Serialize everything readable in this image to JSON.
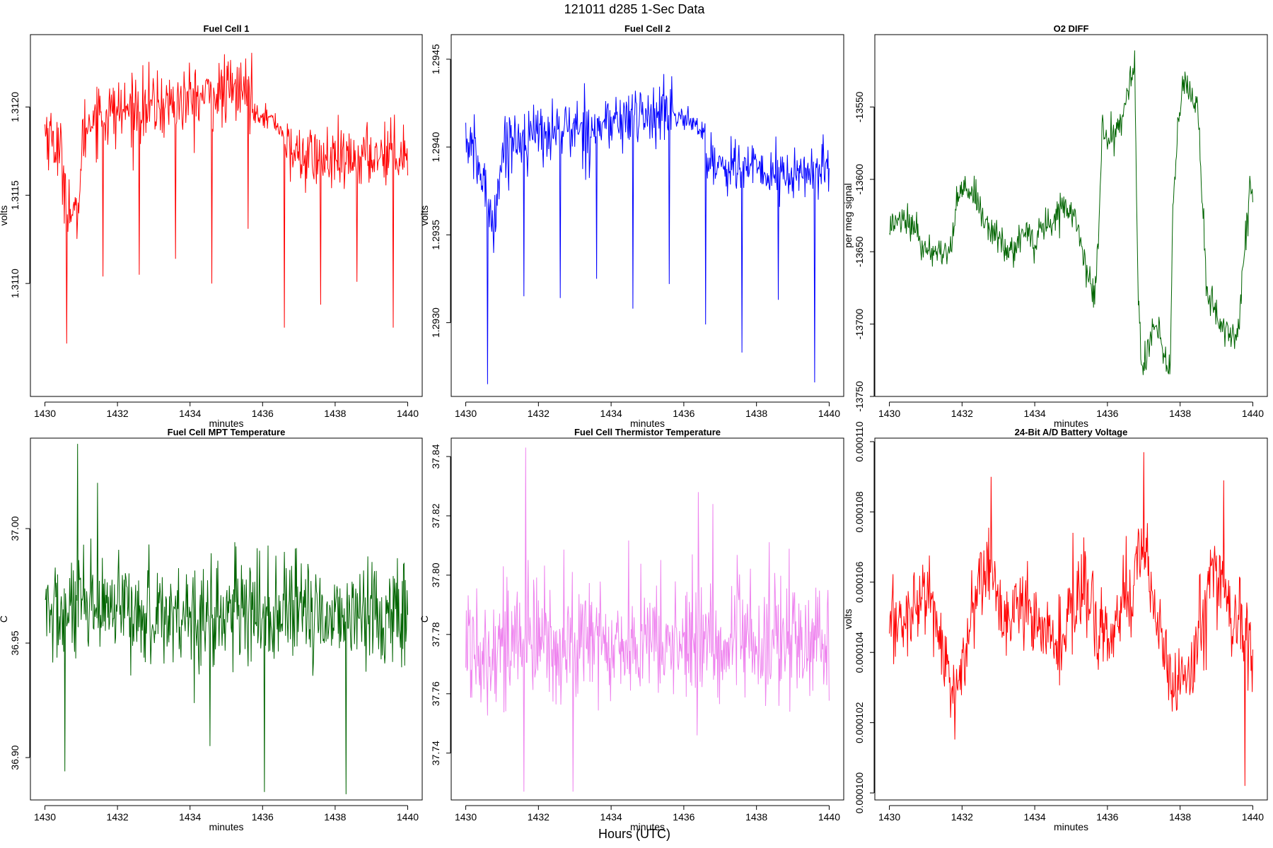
{
  "figure": {
    "title": "121011   d285   1-Sec Data",
    "bottom_label": "Hours (UTC)"
  },
  "chart_data": [
    {
      "type": "line",
      "title": "Fuel Cell 1",
      "xlabel": "minutes",
      "ylabel": "volts",
      "color": "#ff0000",
      "xlim": [
        1429.6,
        1440.4
      ],
      "ylim": [
        1.31036,
        1.31241
      ],
      "xticks": [
        1430,
        1432,
        1434,
        1436,
        1438,
        1440
      ],
      "xtick_labels": [
        "1430",
        "1432",
        "1434",
        "1436",
        "1438",
        "1440"
      ],
      "yticks": [
        1.311,
        1.3115,
        1.312
      ],
      "ytick_labels": [
        "1.3110",
        "1.3115",
        "1.3120"
      ],
      "series": [
        {
          "name": "Fuel Cell 1",
          "segments": [
            {
              "x0": 1430.0,
              "x1": 1431.5,
              "base": [
                1.31188,
                1.31182,
                1.31172,
                1.31145,
                1.31132,
                1.31185,
                1.31195,
                1.31198
              ],
              "noise": 0.00022
            },
            {
              "x0": 1431.5,
              "x1": 1435.7,
              "base": [
                1.31195,
                1.31198,
                1.312,
                1.31202,
                1.31205,
                1.31208,
                1.3121
              ],
              "noise": 0.00022
            },
            {
              "x0": 1435.7,
              "x1": 1436.6,
              "base": [
                1.31198,
                1.31196,
                1.31192,
                1.31185
              ],
              "noise": 7e-05
            },
            {
              "x0": 1436.6,
              "x1": 1440.0,
              "base": [
                1.31175,
                1.31172,
                1.3117,
                1.31168,
                1.31172,
                1.31175,
                1.31175
              ],
              "noise": 0.0002
            }
          ],
          "spikes": [
            {
              "x": 1430.6,
              "y": 1.31066
            },
            {
              "x": 1431.6,
              "y": 1.31104
            },
            {
              "x": 1432.6,
              "y": 1.31105
            },
            {
              "x": 1433.6,
              "y": 1.31114
            },
            {
              "x": 1434.6,
              "y": 1.311
            },
            {
              "x": 1435.6,
              "y": 1.31131
            },
            {
              "x": 1436.6,
              "y": 1.31075
            },
            {
              "x": 1437.6,
              "y": 1.31088
            },
            {
              "x": 1438.6,
              "y": 1.31101
            },
            {
              "x": 1439.6,
              "y": 1.31075
            }
          ]
        }
      ]
    },
    {
      "type": "line",
      "title": "Fuel Cell 2",
      "xlabel": "minutes",
      "ylabel": "volts",
      "color": "#0000ff",
      "xlim": [
        1429.6,
        1440.4
      ],
      "ylim": [
        1.29258,
        1.29464
      ],
      "xticks": [
        1430,
        1432,
        1434,
        1436,
        1438,
        1440
      ],
      "xtick_labels": [
        "1430",
        "1432",
        "1434",
        "1436",
        "1438",
        "1440"
      ],
      "yticks": [
        1.293,
        1.2935,
        1.294,
        1.2945
      ],
      "ytick_labels": [
        "1.2930",
        "1.2935",
        "1.2940",
        "1.2945"
      ],
      "series": [
        {
          "name": "Fuel Cell 2",
          "segments": [
            {
              "x0": 1430.0,
              "x1": 1431.5,
              "base": [
                1.29405,
                1.29395,
                1.29378,
                1.29355,
                1.29395,
                1.29405,
                1.29405
              ],
              "noise": 0.0002
            },
            {
              "x0": 1431.5,
              "x1": 1435.7,
              "base": [
                1.29405,
                1.29408,
                1.2941,
                1.29412,
                1.29415,
                1.29418,
                1.2942
              ],
              "noise": 0.0002
            },
            {
              "x0": 1435.7,
              "x1": 1436.6,
              "base": [
                1.29418,
                1.29416,
                1.29413,
                1.29408
              ],
              "noise": 7e-05
            },
            {
              "x0": 1436.6,
              "x1": 1440.0,
              "base": [
                1.29392,
                1.2939,
                1.29388,
                1.29385,
                1.29383,
                1.29385,
                1.29388
              ],
              "noise": 0.00018
            }
          ],
          "spikes": [
            {
              "x": 1430.6,
              "y": 1.29265
            },
            {
              "x": 1431.6,
              "y": 1.29315
            },
            {
              "x": 1432.6,
              "y": 1.29314
            },
            {
              "x": 1433.6,
              "y": 1.29325
            },
            {
              "x": 1434.6,
              "y": 1.29308
            },
            {
              "x": 1435.6,
              "y": 1.29322
            },
            {
              "x": 1436.6,
              "y": 1.29299
            },
            {
              "x": 1437.6,
              "y": 1.29283
            },
            {
              "x": 1438.6,
              "y": 1.29313
            },
            {
              "x": 1439.6,
              "y": 1.29266
            }
          ]
        }
      ]
    },
    {
      "type": "line",
      "title": "O2 DIFF",
      "xlabel": "minutes",
      "ylabel": "per meg signal",
      "color": "#006400",
      "xlim": [
        1429.6,
        1440.4
      ],
      "ylim": [
        -13750,
        -13500
      ],
      "xticks": [
        1430,
        1432,
        1434,
        1436,
        1438,
        1440
      ],
      "xtick_labels": [
        "1430",
        "1432",
        "1434",
        "1436",
        "1438",
        "1440"
      ],
      "yticks": [
        -13750,
        -13700,
        -13650,
        -13600,
        -13550
      ],
      "ytick_labels": [
        "-13750",
        "-13700",
        "-13650",
        "-13600",
        "-13550"
      ],
      "series": [
        {
          "name": "O2 DIFF",
          "points": [
            [
              1430.0,
              -13635
            ],
            [
              1430.2,
              -13627
            ],
            [
              1430.4,
              -13625
            ],
            [
              1430.7,
              -13636
            ],
            [
              1431.0,
              -13647
            ],
            [
              1431.3,
              -13652
            ],
            [
              1431.6,
              -13655
            ],
            [
              1431.75,
              -13640
            ],
            [
              1431.85,
              -13615
            ],
            [
              1432.0,
              -13605
            ],
            [
              1432.2,
              -13612
            ],
            [
              1432.4,
              -13614
            ],
            [
              1432.55,
              -13620
            ],
            [
              1432.8,
              -13638
            ],
            [
              1433.0,
              -13640
            ],
            [
              1433.2,
              -13650
            ],
            [
              1433.4,
              -13652
            ],
            [
              1433.6,
              -13640
            ],
            [
              1433.8,
              -13638
            ],
            [
              1434.0,
              -13645
            ],
            [
              1434.2,
              -13632
            ],
            [
              1434.5,
              -13630
            ],
            [
              1434.7,
              -13620
            ],
            [
              1434.9,
              -13620
            ],
            [
              1435.1,
              -13625
            ],
            [
              1435.3,
              -13645
            ],
            [
              1435.45,
              -13667
            ],
            [
              1435.65,
              -13682
            ],
            [
              1435.75,
              -13645
            ],
            [
              1435.85,
              -13565
            ],
            [
              1436.0,
              -13576
            ],
            [
              1436.3,
              -13565
            ],
            [
              1436.5,
              -13545
            ],
            [
              1436.75,
              -13522
            ],
            [
              1436.85,
              -13685
            ],
            [
              1436.95,
              -13730
            ],
            [
              1437.2,
              -13710
            ],
            [
              1437.4,
              -13700
            ],
            [
              1437.55,
              -13725
            ],
            [
              1437.72,
              -13732
            ],
            [
              1437.8,
              -13620
            ],
            [
              1437.95,
              -13565
            ],
            [
              1438.1,
              -13528
            ],
            [
              1438.3,
              -13545
            ],
            [
              1438.5,
              -13555
            ],
            [
              1438.6,
              -13610
            ],
            [
              1438.75,
              -13680
            ],
            [
              1438.9,
              -13690
            ],
            [
              1439.1,
              -13700
            ],
            [
              1439.3,
              -13705
            ],
            [
              1439.5,
              -13707
            ],
            [
              1439.6,
              -13700
            ],
            [
              1439.8,
              -13640
            ],
            [
              1439.9,
              -13608
            ],
            [
              1440.0,
              -13610
            ]
          ],
          "noise": 6
        }
      ]
    },
    {
      "type": "line",
      "title": "Fuel Cell MPT Temperature",
      "xlabel": "minutes",
      "ylabel": "C",
      "color": "#006400",
      "xlim": [
        1429.6,
        1440.4
      ],
      "ylim": [
        36.8815,
        37.0395
      ],
      "xticks": [
        1430,
        1432,
        1434,
        1436,
        1438,
        1440
      ],
      "xtick_labels": [
        "1430",
        "1432",
        "1434",
        "1436",
        "1438",
        "1440"
      ],
      "yticks": [
        36.9,
        36.95,
        37.0
      ],
      "ytick_labels": [
        "36.90",
        "36.95",
        "37.00"
      ],
      "series": [
        {
          "name": "Fuel Cell MPT Temperature",
          "mean": 36.963,
          "noise": 0.026,
          "spikes": [
            {
              "x": 1430.55,
              "y": 36.894
            },
            {
              "x": 1430.9,
              "y": 37.037
            },
            {
              "x": 1436.05,
              "y": 36.885
            },
            {
              "x": 1438.3,
              "y": 36.884
            },
            {
              "x": 1431.45,
              "y": 37.02
            },
            {
              "x": 1434.55,
              "y": 36.905
            }
          ]
        }
      ]
    },
    {
      "type": "line",
      "title": "Fuel Cell Thermistor Temperature",
      "xlabel": "minutes",
      "ylabel": "C",
      "color": "#ee82ee",
      "xlim": [
        1429.6,
        1440.4
      ],
      "ylim": [
        37.7242,
        37.8462
      ],
      "xticks": [
        1430,
        1432,
        1434,
        1436,
        1438,
        1440
      ],
      "xtick_labels": [
        "1430",
        "1432",
        "1434",
        "1436",
        "1438",
        "1440"
      ],
      "yticks": [
        37.74,
        37.76,
        37.78,
        37.8,
        37.82,
        37.84
      ],
      "ytick_labels": [
        "37.74",
        "37.76",
        "37.78",
        "37.80",
        "37.82",
        "37.84"
      ],
      "series": [
        {
          "name": "Fuel Cell Thermistor Temperature",
          "mean": 37.777,
          "noise": 0.024,
          "spikes": [
            {
              "x": 1431.65,
              "y": 37.843
            },
            {
              "x": 1431.6,
              "y": 37.727
            },
            {
              "x": 1432.95,
              "y": 37.727
            },
            {
              "x": 1436.4,
              "y": 37.828
            },
            {
              "x": 1436.8,
              "y": 37.824
            }
          ]
        }
      ]
    },
    {
      "type": "line",
      "title": "24-Bit A/D Battery Voltage",
      "xlabel": "minutes",
      "ylabel": "volts",
      "color": "#ff0000",
      "xlim": [
        1429.6,
        1440.4
      ],
      "ylim": [
        9.98e-05,
        0.0001101
      ],
      "xticks": [
        1430,
        1432,
        1434,
        1436,
        1438,
        1440
      ],
      "xtick_labels": [
        "1430",
        "1432",
        "1434",
        "1436",
        "1438",
        "1440"
      ],
      "yticks": [
        0.0001,
        0.000102,
        0.000104,
        0.000106,
        0.000108,
        0.00011
      ],
      "ytick_labels": [
        "0.000100",
        "0.000102",
        "0.000104",
        "0.000106",
        "0.000108",
        "0.000110"
      ],
      "series": [
        {
          "name": "24-Bit A/D Battery Voltage",
          "points": [
            [
              1430.0,
              0.0001047
            ],
            [
              1430.5,
              0.000105
            ],
            [
              1431.0,
              0.0001058
            ],
            [
              1431.3,
              0.000105
            ],
            [
              1431.6,
              0.0001035
            ],
            [
              1431.8,
              0.0001025
            ],
            [
              1432.2,
              0.0001045
            ],
            [
              1432.5,
              0.0001062
            ],
            [
              1432.8,
              0.0001065
            ],
            [
              1433.1,
              0.0001048
            ],
            [
              1433.5,
              0.000105
            ],
            [
              1433.8,
              0.0001055
            ],
            [
              1434.2,
              0.0001045
            ],
            [
              1434.5,
              0.000104
            ],
            [
              1434.9,
              0.0001048
            ],
            [
              1435.2,
              0.0001058
            ],
            [
              1435.5,
              0.0001055
            ],
            [
              1435.8,
              0.0001045
            ],
            [
              1436.1,
              0.0001045
            ],
            [
              1436.4,
              0.0001055
            ],
            [
              1436.7,
              0.000106
            ],
            [
              1437.0,
              0.0001072
            ],
            [
              1437.3,
              0.0001052
            ],
            [
              1437.6,
              0.000104
            ],
            [
              1438.0,
              0.000103
            ],
            [
              1438.3,
              0.0001035
            ],
            [
              1438.6,
              0.000105
            ],
            [
              1438.9,
              0.0001065
            ],
            [
              1439.2,
              0.0001058
            ],
            [
              1439.5,
              0.0001045
            ],
            [
              1439.8,
              0.0001045
            ],
            [
              1440.0,
              0.000104
            ]
          ],
          "noise": 1.3e-06,
          "spikes": [
            {
              "x": 1439.78,
              "y": 0.0001002
            },
            {
              "x": 1437.0,
              "y": 0.0001097
            },
            {
              "x": 1432.8,
              "y": 0.000109
            },
            {
              "x": 1439.2,
              "y": 0.0001089
            }
          ]
        }
      ]
    }
  ]
}
